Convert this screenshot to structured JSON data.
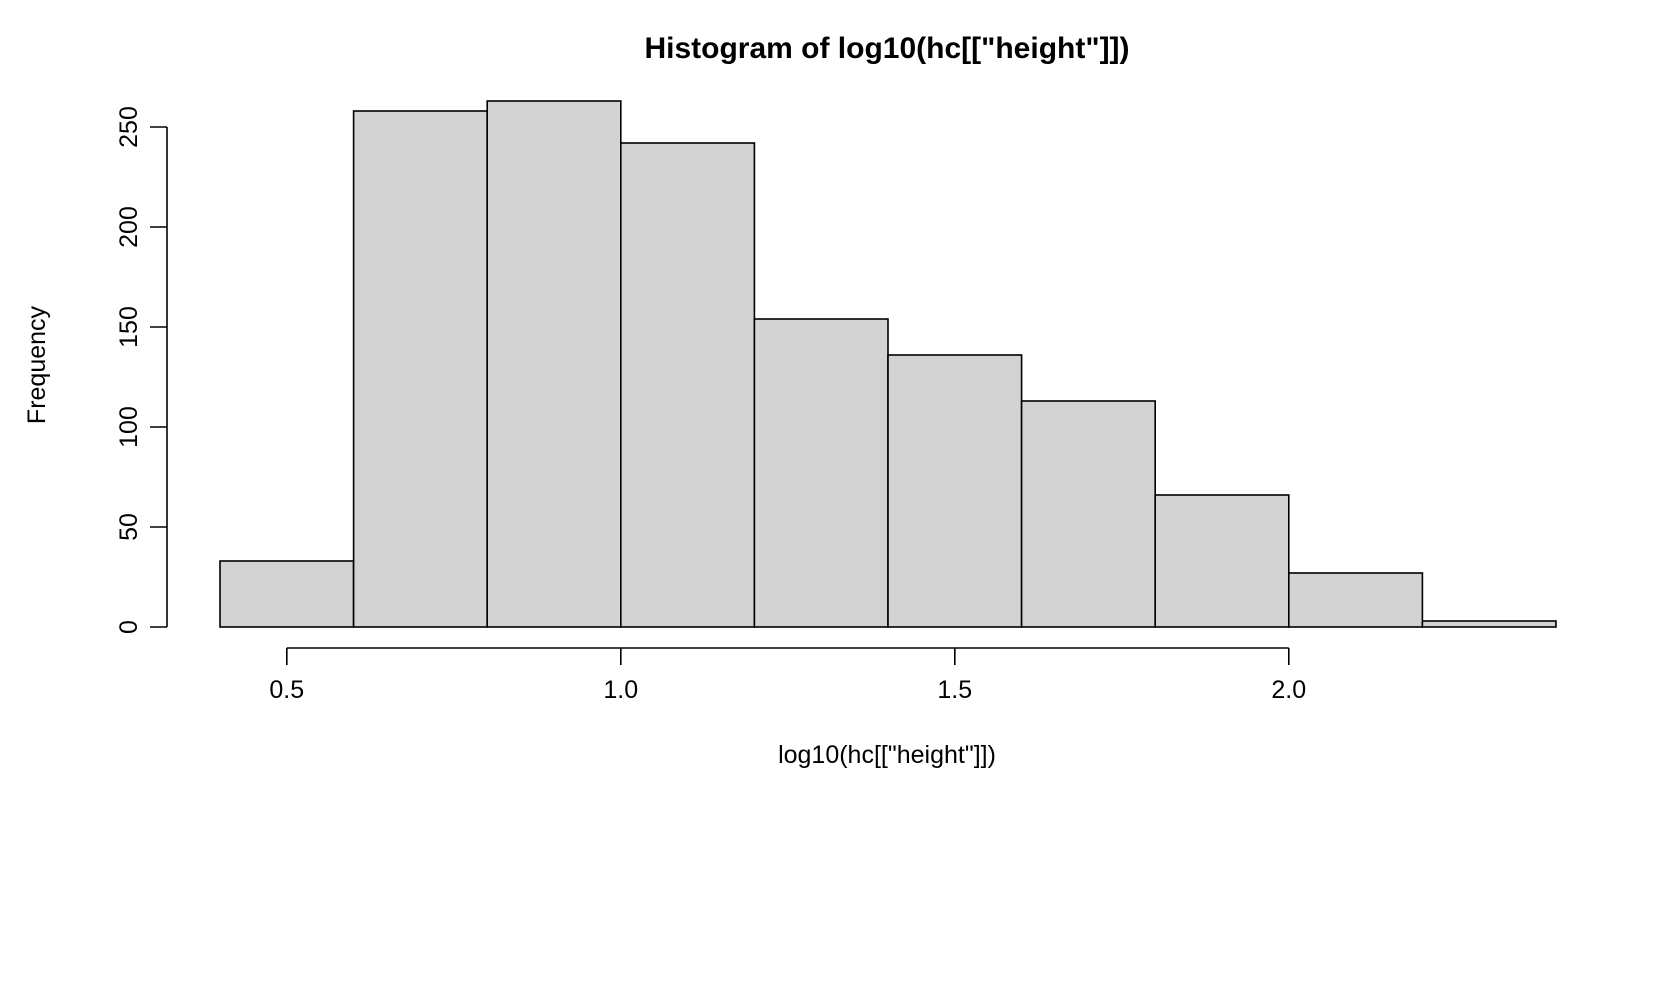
{
  "chart_data": {
    "type": "bar",
    "title": "Histogram of log10(hc[[\"height\"]])",
    "xlabel": "log10(hc[[\"height\"]])",
    "ylabel": "Frequency",
    "bins": [
      {
        "x0": 0.4,
        "x1": 0.6,
        "count": 33
      },
      {
        "x0": 0.6,
        "x1": 0.8,
        "count": 258
      },
      {
        "x0": 0.8,
        "x1": 1.0,
        "count": 263
      },
      {
        "x0": 1.0,
        "x1": 1.2,
        "count": 242
      },
      {
        "x0": 1.2,
        "x1": 1.4,
        "count": 154
      },
      {
        "x0": 1.4,
        "x1": 1.6,
        "count": 136
      },
      {
        "x0": 1.6,
        "x1": 1.8,
        "count": 113
      },
      {
        "x0": 1.8,
        "x1": 2.0,
        "count": 66
      },
      {
        "x0": 2.0,
        "x1": 2.2,
        "count": 27
      },
      {
        "x0": 2.2,
        "x1": 2.4,
        "count": 3
      }
    ],
    "x_ticks": [
      "0.5",
      "1.0",
      "1.5",
      "2.0"
    ],
    "x_tick_values": [
      0.5,
      1.0,
      1.5,
      2.0
    ],
    "y_ticks": [
      "0",
      "50",
      "100",
      "150",
      "200",
      "250"
    ],
    "y_tick_values": [
      0,
      50,
      100,
      150,
      200,
      250
    ],
    "xlim": [
      0.4,
      2.4
    ],
    "ylim": [
      0,
      263
    ],
    "grid": false,
    "legend": "none",
    "bar_color": "#d3d3d3",
    "edge_color": "#000000"
  }
}
